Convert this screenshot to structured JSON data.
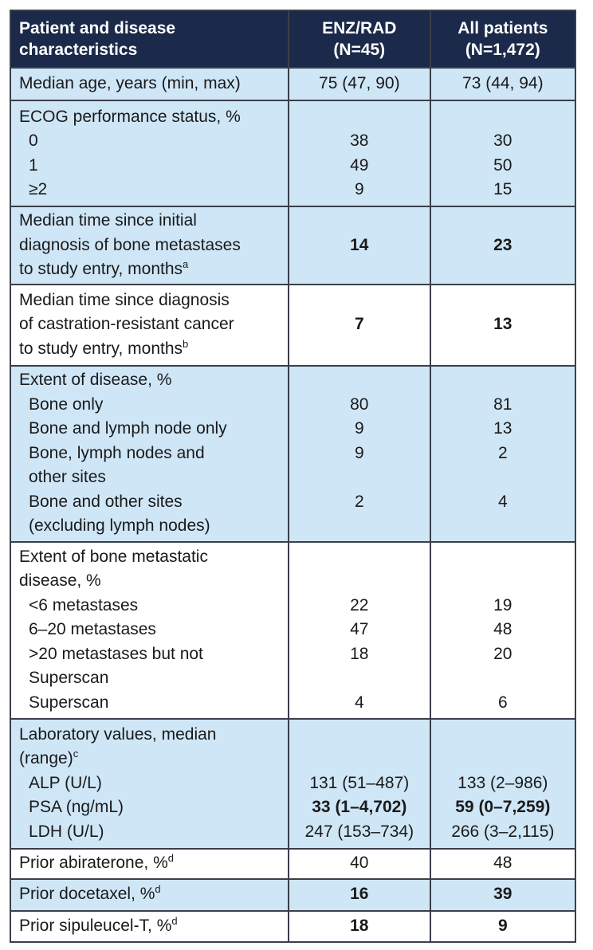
{
  "table": {
    "header": [
      {
        "lines": [
          "Patient and disease",
          "characteristics"
        ]
      },
      {
        "lines": [
          "ENZ/RAD",
          "(N=45)"
        ]
      },
      {
        "lines": [
          "All patients",
          "(N=1,472)"
        ]
      }
    ],
    "rows": [
      {
        "bg": "blue",
        "lines": [
          {
            "label": "Median age, years (min, max)",
            "enz": "75 (47, 90)",
            "all": "73 (44, 94)"
          }
        ]
      },
      {
        "bg": "blue",
        "lines": [
          {
            "label": "ECOG performance status, %"
          },
          {
            "label": "0",
            "indent": true,
            "enz": "38",
            "all": "30"
          },
          {
            "label": "1",
            "indent": true,
            "enz": "49",
            "all": "50"
          },
          {
            "label": "≥2",
            "indent": true,
            "enz": "9",
            "all": "15"
          }
        ]
      },
      {
        "bg": "blue",
        "lines": [
          {
            "label": "Median time since initial"
          },
          {
            "label": "diagnosis of bone metastases",
            "enz": "14",
            "all": "23",
            "bold": true
          },
          {
            "label": "to study entry, months",
            "sup": "a"
          }
        ]
      },
      {
        "bg": "white",
        "lines": [
          {
            "label": "Median time since diagnosis"
          },
          {
            "label": "of castration-resistant cancer",
            "enz": "7",
            "all": "13",
            "bold": true
          },
          {
            "label": "to study entry, months",
            "sup": "b"
          }
        ]
      },
      {
        "bg": "blue",
        "lines": [
          {
            "label": "Extent of disease, %"
          },
          {
            "label": "Bone only",
            "indent": true,
            "enz": "80",
            "all": "81"
          },
          {
            "label": "Bone and lymph node only",
            "indent": true,
            "enz": "9",
            "all": "13"
          },
          {
            "label": "Bone, lymph nodes and",
            "indent": true,
            "enz": "9",
            "all": "2"
          },
          {
            "label": "other sites",
            "indent": true
          },
          {
            "label": "Bone and other sites",
            "indent": true,
            "enz": "2",
            "all": "4"
          },
          {
            "label": "(excluding lymph nodes)",
            "indent": true
          }
        ]
      },
      {
        "bg": "white",
        "lines": [
          {
            "label": "Extent of bone metastatic"
          },
          {
            "label": "disease, %"
          },
          {
            "label": "<6 metastases",
            "indent": true,
            "enz": "22",
            "all": "19"
          },
          {
            "label": "6–20 metastases",
            "indent": true,
            "enz": "47",
            "all": "48"
          },
          {
            "label": ">20 metastases but not",
            "indent": true,
            "enz": "18",
            "all": "20"
          },
          {
            "label": "Superscan",
            "indent": true
          },
          {
            "label": "Superscan",
            "indent": true,
            "enz": "4",
            "all": "6"
          }
        ]
      },
      {
        "bg": "blue",
        "lines": [
          {
            "label": "Laboratory values, median"
          },
          {
            "label": "(range)",
            "sup": "c"
          },
          {
            "label": "ALP (U/L)",
            "indent": true,
            "enz": "131 (51–487)",
            "all": "133 (2–986)"
          },
          {
            "label": "PSA (ng/mL)",
            "indent": true,
            "enz": "33 (1–4,702)",
            "all": "59 (0–7,259)",
            "bold": true
          },
          {
            "label": "LDH (U/L)",
            "indent": true,
            "enz": "247 (153–734)",
            "all": "266 (3–2,115)"
          }
        ]
      },
      {
        "bg": "white",
        "lines": [
          {
            "label": "Prior abiraterone, %",
            "sup": "d",
            "enz": "40",
            "all": "48"
          }
        ]
      },
      {
        "bg": "blue",
        "lines": [
          {
            "label": "Prior docetaxel, %",
            "sup": "d",
            "enz": "16",
            "all": "39",
            "bold": true
          }
        ]
      },
      {
        "bg": "white",
        "lines": [
          {
            "label": "Prior sipuleucel-T, %",
            "sup": "d",
            "enz": "18",
            "all": "9",
            "bold": true
          }
        ]
      }
    ]
  }
}
